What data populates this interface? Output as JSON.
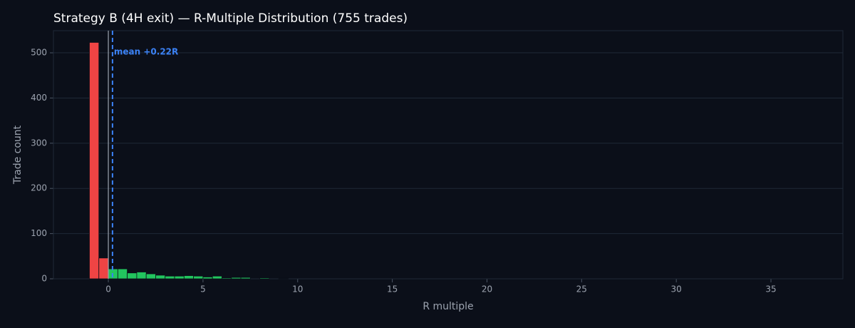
{
  "chart_data": {
    "type": "histogram",
    "title": "Strategy B (4H exit) — R-Multiple Distribution (755 trades)",
    "xlabel": "R multiple",
    "ylabel": "Trade count",
    "bins": [
      -1,
      -0.5,
      0,
      0.5,
      1,
      1.5,
      2,
      2.5,
      3,
      3.5,
      4,
      4.5,
      5,
      5.5,
      6,
      6.5,
      7,
      7.5,
      8,
      8.5,
      9,
      9.5
    ],
    "counts": [
      523,
      46,
      22,
      22,
      13,
      15,
      11,
      8,
      6,
      6,
      7,
      6,
      4,
      6,
      2,
      3,
      3,
      0,
      2,
      0,
      1
    ],
    "negative_color": "#ef4444",
    "positive_color": "#22c55e",
    "reference_line": 0,
    "mean": 0.22,
    "mean_label": "mean +0.22R",
    "mean_color": "#3b82f6",
    "xlim": [
      -2.9,
      38.8
    ],
    "ylim": [
      0,
      549
    ],
    "xticks": [
      0,
      5,
      10,
      15,
      20,
      25,
      30,
      35
    ],
    "yticks": [
      0,
      100,
      200,
      300,
      400,
      500
    ],
    "grid": true
  }
}
